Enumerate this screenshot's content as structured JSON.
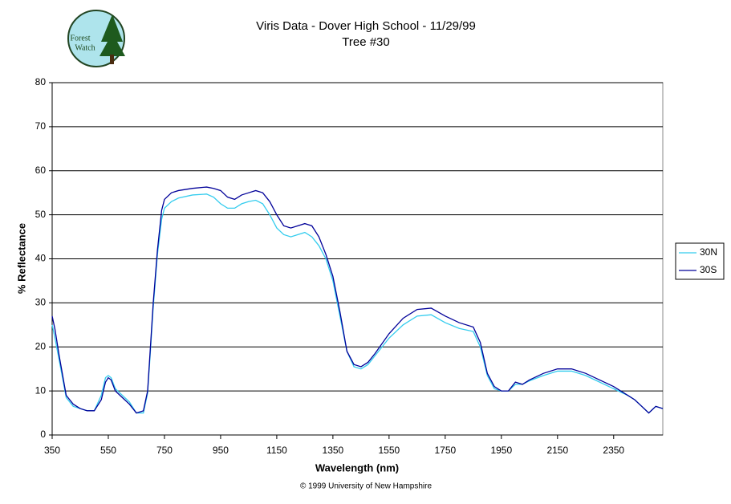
{
  "chart_data": {
    "type": "line",
    "title": "Viris Data - Dover High School - 11/29/99",
    "subtitle": "Tree #30",
    "logo_text": [
      "Forest",
      "Watch"
    ],
    "x_label": "Wavelength (nm)",
    "y_label": "% Reflectance",
    "footer": "© 1999 University of New Hampshire",
    "x": [
      350,
      360,
      375,
      400,
      425,
      450,
      475,
      500,
      525,
      540,
      550,
      560,
      575,
      600,
      625,
      650,
      675,
      690,
      700,
      710,
      725,
      740,
      750,
      775,
      800,
      850,
      900,
      925,
      950,
      975,
      1000,
      1025,
      1050,
      1075,
      1100,
      1125,
      1150,
      1175,
      1200,
      1225,
      1250,
      1275,
      1300,
      1325,
      1350,
      1375,
      1400,
      1425,
      1450,
      1475,
      1500,
      1550,
      1600,
      1650,
      1700,
      1750,
      1800,
      1850,
      1875,
      1900,
      1925,
      1950,
      1975,
      2000,
      2025,
      2050,
      2100,
      2150,
      2200,
      2250,
      2300,
      2350,
      2400,
      2425,
      2450,
      2475,
      2500,
      2525
    ],
    "series": [
      {
        "name": "30N",
        "color": "#33ccee",
        "values": [
          25,
          22,
          17,
          8.5,
          6.5,
          6,
          5.5,
          5.5,
          9,
          13,
          13.5,
          13,
          10.5,
          9,
          7.5,
          5,
          5,
          9.5,
          19,
          29,
          41,
          49,
          51.5,
          53,
          53.8,
          54.5,
          54.7,
          54,
          52.5,
          51.5,
          51.5,
          52.5,
          53,
          53.3,
          52.5,
          50,
          47,
          45.5,
          45,
          45.5,
          46,
          45,
          43,
          40,
          35,
          27,
          19,
          15.5,
          15,
          16,
          18,
          22,
          25,
          27,
          27.3,
          25.5,
          24.2,
          23.5,
          20,
          13.5,
          10.5,
          10,
          10,
          11.5,
          11.5,
          12.3,
          13.5,
          14.5,
          14.5,
          13.5,
          12,
          10.5,
          9,
          8,
          6.5,
          5,
          6.5,
          6
        ]
      },
      {
        "name": "30S",
        "color": "#000099",
        "values": [
          27,
          24,
          18,
          9,
          7,
          6,
          5.5,
          5.5,
          8,
          12,
          13,
          12.5,
          10,
          8.5,
          7,
          5,
          5.5,
          10,
          20,
          30,
          42,
          51,
          53.5,
          55,
          55.5,
          56,
          56.3,
          56,
          55.5,
          54,
          53.5,
          54.5,
          55,
          55.5,
          55,
          53,
          50,
          47.5,
          47,
          47.5,
          48,
          47.5,
          45,
          41,
          36,
          28,
          19,
          16,
          15.5,
          16.5,
          18.5,
          23,
          26.5,
          28.5,
          28.8,
          27,
          25.5,
          24.5,
          21,
          14,
          11,
          10,
          10,
          12,
          11.5,
          12.5,
          14,
          15,
          15,
          14,
          12.5,
          11,
          9,
          8,
          6.5,
          5,
          6.5,
          6
        ]
      }
    ],
    "xlim": [
      350,
      2525
    ],
    "xticks": [
      350,
      550,
      750,
      950,
      1150,
      1350,
      1550,
      1750,
      1950,
      2150,
      2350
    ],
    "ylim": [
      0,
      80
    ],
    "yticks": [
      0,
      10,
      20,
      30,
      40,
      50,
      60,
      70,
      80
    ],
    "grid": true,
    "legend": "right"
  }
}
